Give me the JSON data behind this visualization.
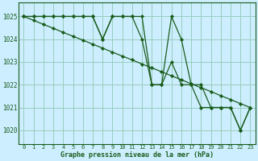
{
  "title": "Graphe pression niveau de la mer (hPa)",
  "background_color": "#cceeff",
  "grid_color": "#99ccbb",
  "line_color": "#1a5c1a",
  "x_labels": [
    "0",
    "1",
    "2",
    "3",
    "4",
    "5",
    "6",
    "7",
    "8",
    "9",
    "10",
    "11",
    "12",
    "13",
    "14",
    "15",
    "16",
    "17",
    "18",
    "19",
    "20",
    "21",
    "22",
    "23"
  ],
  "ylim": [
    1019.4,
    1025.6
  ],
  "yticks": [
    1020,
    1021,
    1022,
    1023,
    1024,
    1025
  ],
  "series_straight": [
    1025.0,
    1024.83,
    1024.65,
    1024.48,
    1024.3,
    1024.13,
    1023.96,
    1023.78,
    1023.61,
    1023.43,
    1023.26,
    1023.09,
    1022.91,
    1022.74,
    1022.57,
    1022.39,
    1022.22,
    1022.04,
    1021.87,
    1021.7,
    1021.52,
    1021.35,
    1021.17,
    1021.0
  ],
  "series2": [
    1025,
    1025,
    1025,
    1025,
    1025,
    1025,
    1025,
    1025,
    1024,
    1025,
    1025,
    1025,
    1024,
    1022,
    1022,
    1025,
    1024,
    1022,
    1022,
    1021,
    1021,
    1021,
    1020,
    1021
  ],
  "series3": [
    1025,
    1025,
    1025,
    1025,
    1025,
    1025,
    1025,
    1025,
    1024,
    1025,
    1025,
    1025,
    1025,
    1022,
    1022,
    1023,
    1022,
    1022,
    1021,
    1021,
    1021,
    1021,
    1020,
    1021
  ]
}
